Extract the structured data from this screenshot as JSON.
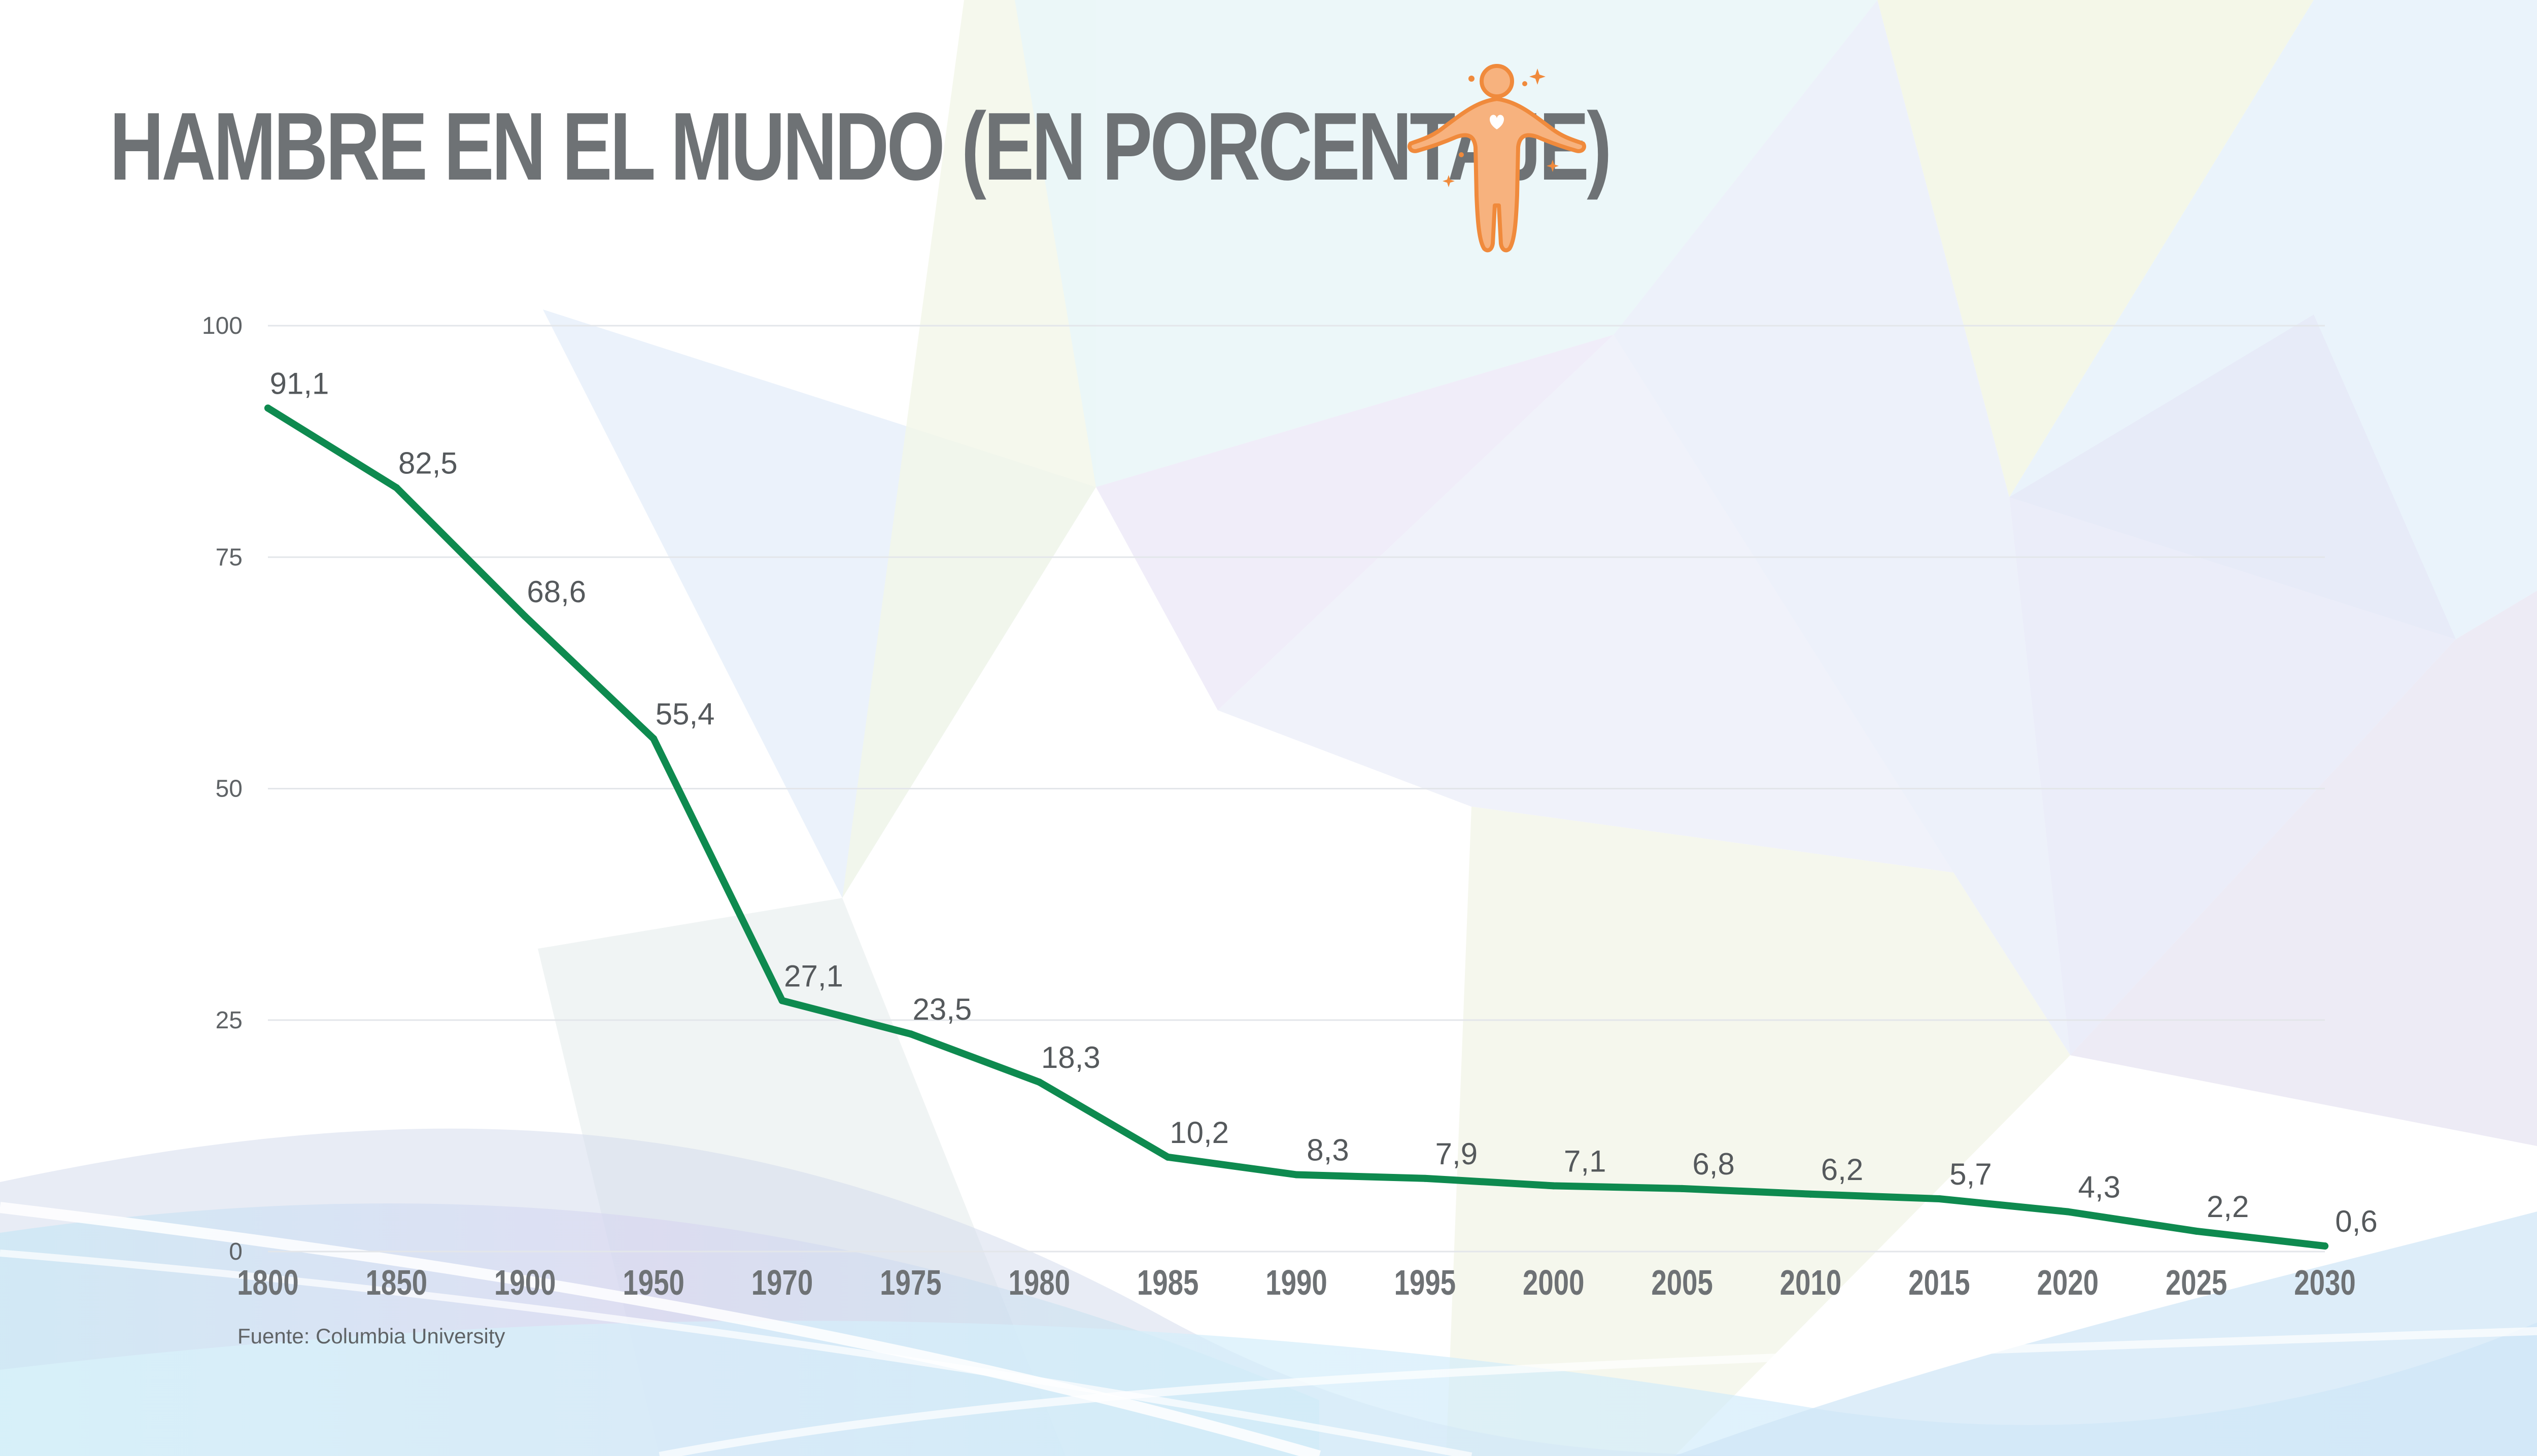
{
  "title": "HAMBRE EN EL MUNDO (EN PORCENTAJE)",
  "source": "Fuente: Columbia University",
  "icon": "person-open-arms-icon",
  "colors": {
    "line": "#0e8a4f",
    "title": "#6e7275",
    "icon": "#f08a3c"
  },
  "chart_data": {
    "type": "line",
    "title": "HAMBRE EN EL MUNDO (EN PORCENTAJE)",
    "xlabel": "",
    "ylabel": "",
    "categories": [
      "1800",
      "1850",
      "1900",
      "1950",
      "1970",
      "1975",
      "1980",
      "1985",
      "1990",
      "1995",
      "2000",
      "2005",
      "2010",
      "2015",
      "2020",
      "2025",
      "2030"
    ],
    "values": [
      91.1,
      82.5,
      68.6,
      55.4,
      27.1,
      23.5,
      18.3,
      10.2,
      8.3,
      7.9,
      7.1,
      6.8,
      6.2,
      5.7,
      4.3,
      2.2,
      0.6
    ],
    "labels": [
      "91,1",
      "82,5",
      "68,6",
      "55,4",
      "27,1",
      "23,5",
      "18,3",
      "10,2",
      "8,3",
      "7,9",
      "7,1",
      "6,8",
      "6,2",
      "5,7",
      "4,3",
      "2,2",
      "0,6"
    ],
    "yticks": [
      0,
      25,
      50,
      75,
      100
    ],
    "ylim": [
      0,
      100
    ],
    "grid": true,
    "legend": "none"
  }
}
